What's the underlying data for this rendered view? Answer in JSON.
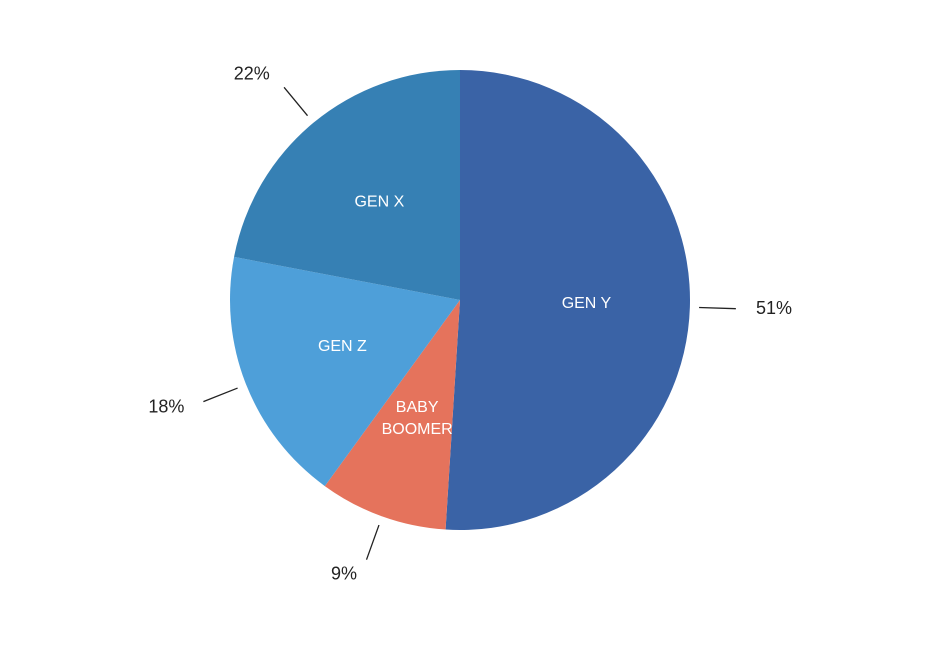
{
  "chart_data": {
    "type": "pie",
    "categories": [
      "GEN Y",
      "BABY BOOMER",
      "GEN Z",
      "GEN X"
    ],
    "values": [
      51,
      9,
      18,
      22
    ],
    "value_labels": [
      "51%",
      "9%",
      "18%",
      "22%"
    ],
    "colors": [
      "#3a63a6",
      "#e5735c",
      "#4e9fd9",
      "#3680b4"
    ]
  }
}
